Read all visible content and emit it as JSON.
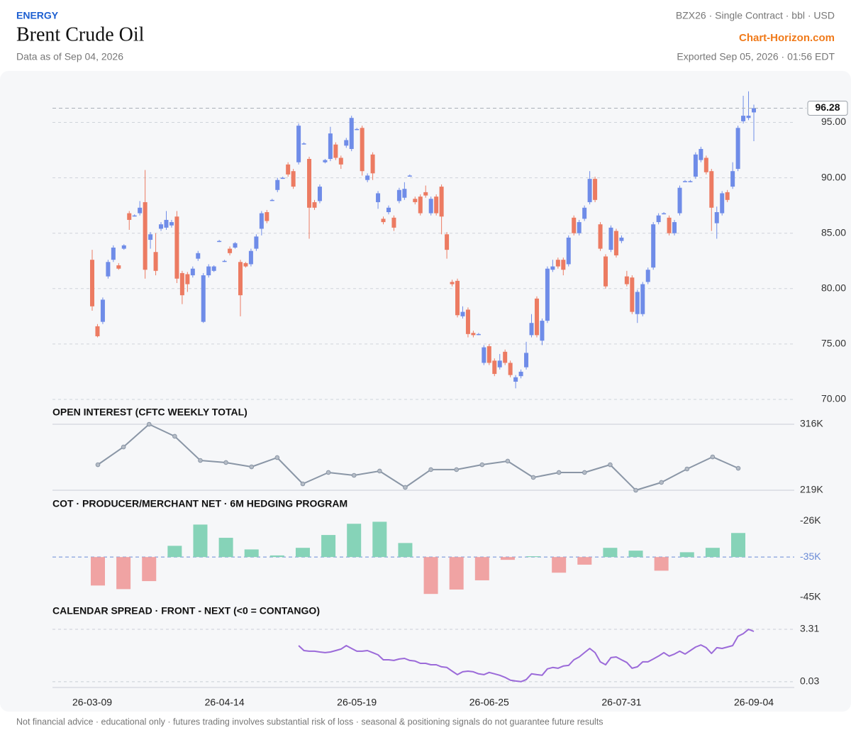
{
  "header": {
    "category": "ENERGY",
    "title": "Brent Crude Oil",
    "as_of": "Data as of Sep 04, 2026",
    "contract": "BZX26 · Single Contract · bbl · USD",
    "source": "Chart-Horizon.com",
    "exported": "Exported Sep 05, 2026 · 01:56 EDT"
  },
  "chart_data": [
    {
      "type": "candlestick",
      "up_color": "#6f8ce8",
      "down_color": "#ec7b62",
      "grid": true,
      "categories": [
        "26-03-09",
        null,
        null,
        null,
        null,
        null,
        null,
        null,
        null,
        null,
        null,
        null,
        null,
        null,
        null,
        null,
        null,
        null,
        null,
        null,
        null,
        null,
        null,
        null,
        null,
        "26-04-14",
        null,
        null,
        null,
        null,
        null,
        null,
        null,
        null,
        null,
        null,
        null,
        null,
        null,
        null,
        null,
        null,
        null,
        null,
        null,
        null,
        null,
        null,
        null,
        null,
        "26-05-19",
        null,
        null,
        null,
        null,
        null,
        null,
        null,
        null,
        null,
        null,
        null,
        null,
        null,
        null,
        null,
        null,
        null,
        null,
        null,
        null,
        null,
        null,
        null,
        null,
        "26-06-25",
        null,
        null,
        null,
        null,
        null,
        null,
        null,
        null,
        null,
        null,
        null,
        null,
        null,
        null,
        null,
        null,
        null,
        null,
        null,
        null,
        null,
        null,
        null,
        null,
        "26-07-31",
        null,
        null,
        null,
        null,
        null,
        null,
        null,
        null,
        null,
        null,
        null,
        null,
        null,
        null,
        null,
        null,
        null,
        null,
        null,
        null,
        null,
        null,
        null,
        null,
        "26-09-04"
      ],
      "open": [
        82.6,
        76.6,
        77.0,
        81.1,
        82.6,
        82.1,
        83.6,
        86.8,
        86.6,
        86.8,
        87.8,
        84.4,
        83.3,
        85.4,
        85.5,
        85.7,
        86.5,
        81.4,
        81.3,
        81.2,
        82.7,
        77.0,
        81.2,
        81.6,
        84.3,
        82.5,
        83.6,
        83.7,
        82.4,
        82.3,
        82.2,
        83.6,
        85.4,
        86.9,
        88.0,
        88.9,
        90.0,
        91.2,
        90.6,
        91.4,
        93.1,
        91.7,
        87.8,
        87.9,
        91.4,
        91.7,
        93.0,
        91.8,
        92.9,
        92.6,
        94.4,
        94.5,
        89.8,
        92.1,
        87.8,
        86.3,
        86.9,
        86.4,
        87.9,
        88.2,
        90.2,
        88.1,
        88.3,
        88.7,
        86.8,
        88.3,
        89.2,
        84.9,
        80.6,
        80.7,
        77.5,
        78.1,
        76.0,
        75.9,
        73.3,
        74.8,
        73.5,
        72.9,
        74.3,
        73.3,
        71.6,
        72.1,
        72.9,
        75.8,
        79.1,
        75.3,
        77.1,
        81.7,
        82.6,
        82.6,
        82.2,
        86.4,
        85.0,
        86.3,
        87.8,
        89.9,
        85.8,
        82.9,
        83.5,
        85.2,
        84.3,
        81.1,
        81.0,
        77.7,
        77.7,
        80.6,
        81.9,
        86.0,
        86.8,
        86.4,
        85.0,
        86.8,
        89.7,
        89.7,
        90.1,
        91.6,
        91.8,
        90.6,
        85.9,
        86.8,
        88.7,
        89.2,
        90.8,
        95.1,
        95.4,
        95.9
      ],
      "high": [
        83.5,
        76.8,
        79.2,
        82.6,
        83.9,
        82.3,
        84.0,
        87.0,
        86.7,
        87.9,
        90.7,
        85.1,
        85.0,
        86.0,
        87.0,
        86.2,
        87.0,
        81.6,
        81.5,
        82.0,
        83.4,
        81.4,
        82.2,
        82.1,
        84.4,
        82.6,
        83.8,
        84.2,
        82.6,
        82.4,
        83.6,
        84.9,
        87.0,
        87.1,
        88.1,
        90.0,
        90.1,
        91.4,
        90.8,
        94.9,
        93.2,
        91.9,
        88.0,
        89.4,
        91.7,
        94.6,
        93.2,
        92.0,
        93.6,
        95.6,
        94.5,
        94.7,
        90.4,
        92.3,
        88.8,
        86.5,
        87.5,
        86.6,
        89.1,
        89.6,
        90.3,
        88.3,
        88.5,
        89.3,
        88.3,
        88.5,
        89.4,
        85.1,
        80.8,
        80.9,
        78.4,
        78.3,
        76.2,
        76.0,
        74.9,
        75.0,
        73.7,
        74.1,
        74.5,
        73.5,
        72.2,
        72.7,
        75.2,
        77.7,
        79.3,
        77.3,
        82.0,
        82.6,
        82.8,
        82.8,
        84.8,
        86.6,
        86.2,
        87.5,
        90.6,
        90.1,
        86.0,
        83.1,
        85.7,
        85.4,
        84.8,
        81.6,
        81.2,
        79.9,
        80.6,
        81.9,
        86.0,
        86.8,
        86.9,
        86.6,
        86.2,
        89.3,
        89.8,
        89.8,
        92.3,
        92.8,
        92.0,
        90.8,
        87.4,
        88.8,
        88.9,
        91.4,
        94.7,
        97.4,
        97.8,
        96.6
      ],
      "low": [
        78.0,
        75.6,
        76.8,
        80.9,
        82.4,
        81.7,
        83.5,
        85.3,
        86.5,
        86.6,
        80.9,
        83.6,
        81.2,
        85.2,
        85.3,
        85.5,
        80.5,
        78.6,
        79.7,
        81.0,
        82.5,
        76.9,
        81.0,
        81.5,
        84.2,
        82.4,
        83.0,
        83.6,
        77.5,
        81.9,
        82.0,
        83.4,
        84.8,
        85.9,
        87.9,
        88.7,
        89.9,
        90.1,
        89.0,
        91.2,
        93.0,
        84.5,
        87.1,
        87.7,
        91.3,
        91.5,
        91.6,
        90.8,
        92.7,
        92.4,
        94.3,
        90.2,
        89.6,
        89.8,
        87.2,
        85.8,
        86.7,
        85.2,
        87.7,
        88.0,
        90.1,
        87.6,
        86.6,
        88.2,
        86.6,
        86.6,
        84.9,
        82.7,
        80.2,
        77.4,
        77.3,
        75.6,
        75.6,
        75.8,
        73.1,
        73.1,
        72.1,
        72.7,
        73.1,
        72.0,
        71.0,
        71.9,
        72.7,
        75.6,
        75.6,
        74.9,
        76.9,
        81.5,
        81.8,
        81.2,
        82.0,
        84.8,
        84.8,
        86.1,
        87.6,
        87.8,
        83.4,
        80.0,
        83.3,
        82.8,
        84.1,
        80.2,
        77.7,
        76.9,
        77.5,
        80.4,
        81.7,
        85.8,
        86.7,
        84.8,
        84.8,
        86.6,
        89.6,
        89.6,
        89.9,
        91.4,
        90.3,
        85.2,
        84.5,
        86.6,
        87.8,
        89.0,
        90.6,
        94.9,
        95.2,
        93.3
      ],
      "close": [
        78.4,
        75.7,
        79.0,
        82.4,
        83.7,
        81.8,
        83.9,
        86.2,
        86.6,
        87.3,
        81.7,
        84.9,
        81.6,
        85.8,
        86.2,
        86.0,
        80.9,
        79.4,
        80.4,
        81.8,
        83.2,
        81.2,
        82.0,
        82.0,
        84.3,
        82.5,
        83.2,
        84.1,
        79.4,
        82.0,
        83.4,
        84.7,
        86.8,
        86.1,
        88.0,
        89.8,
        90.0,
        90.3,
        89.2,
        94.7,
        93.1,
        87.3,
        87.3,
        89.2,
        91.6,
        94.0,
        91.8,
        91.2,
        93.4,
        95.4,
        94.4,
        90.6,
        90.2,
        90.4,
        88.6,
        86.0,
        87.3,
        85.5,
        88.9,
        89.0,
        90.2,
        87.8,
        86.8,
        88.4,
        88.1,
        86.8,
        86.5,
        83.5,
        80.4,
        77.6,
        77.9,
        75.9,
        75.8,
        75.9,
        74.7,
        73.3,
        72.3,
        73.5,
        73.3,
        72.2,
        72.0,
        72.5,
        74.2,
        76.9,
        75.8,
        77.1,
        81.8,
        82.0,
        82.0,
        81.7,
        84.6,
        85.0,
        86.0,
        87.3,
        89.9,
        88.0,
        83.6,
        80.2,
        85.5,
        83.0,
        84.6,
        80.4,
        77.9,
        79.7,
        80.4,
        81.7,
        85.8,
        86.6,
        86.8,
        85.0,
        86.0,
        89.1,
        89.7,
        89.7,
        92.1,
        92.6,
        90.5,
        87.3,
        86.9,
        88.6,
        88.0,
        90.6,
        94.5,
        95.6,
        95.6,
        96.28
      ],
      "ylim": [
        70,
        99
      ],
      "yticks": [
        {
          "value": 70,
          "label": "70.00"
        },
        {
          "value": 75,
          "label": "75.00"
        },
        {
          "value": 80,
          "label": "80.00"
        },
        {
          "value": 85,
          "label": "85.00"
        },
        {
          "value": 90,
          "label": "90.00"
        },
        {
          "value": 95,
          "label": "95.00"
        }
      ]
    },
    {
      "type": "line",
      "title": "OPEN INTEREST (CFTC WEEKLY TOTAL)",
      "color": "#8a96a6",
      "values": [
        256.5,
        282.6,
        316,
        298.3,
        262.8,
        259.7,
        253.4,
        267,
        228.4,
        245.1,
        240.9,
        247.2,
        223.2,
        249.3,
        249.3,
        256.5,
        261.8,
        237.8,
        245.1,
        245.1,
        256.5,
        219,
        230.5,
        250.3,
        268,
        251.3
      ],
      "ylim": [
        219,
        316
      ],
      "yticks": [
        {
          "value": 219,
          "label": "219K"
        },
        {
          "value": 316,
          "label": "316K"
        }
      ]
    },
    {
      "type": "bar",
      "title": "COT · PRODUCER/MERCHANT NET · 6M HEDGING PROGRAM",
      "up_color": "#86d3b8",
      "down_color": "#f0a3a3",
      "baseline_color": "#6a8bd6",
      "values": [
        -42.1,
        -43.0,
        -41.0,
        -32.2,
        -26.9,
        -30.2,
        -33.1,
        -34.6,
        -32.7,
        -29.5,
        -26.7,
        -26.2,
        -31.5,
        -44.2,
        -43.1,
        -40.8,
        -35.7,
        -34.8,
        -38.9,
        -36.9,
        -32.7,
        -33.4,
        -38.4,
        -33.8,
        -32.7,
        -29.0
      ],
      "ylim": [
        -47,
        -24
      ],
      "yticks": [
        {
          "value": -45,
          "label": "-45K"
        },
        {
          "value": -35,
          "label": "-35K"
        },
        {
          "value": -26,
          "label": "-26K"
        }
      ]
    },
    {
      "type": "line",
      "title": "CALENDAR SPREAD · FRONT - NEXT (<0 = CONTANGO)",
      "color": "#9b6ad9",
      "values": [
        null,
        null,
        null,
        null,
        null,
        null,
        null,
        null,
        null,
        null,
        null,
        null,
        null,
        null,
        null,
        null,
        null,
        null,
        null,
        null,
        null,
        null,
        null,
        null,
        null,
        null,
        null,
        null,
        null,
        null,
        null,
        null,
        null,
        null,
        null,
        null,
        null,
        null,
        null,
        2.29,
        1.98,
        1.94,
        1.94,
        1.89,
        1.85,
        1.89,
        1.98,
        2.07,
        2.29,
        2.11,
        1.94,
        1.94,
        1.98,
        1.85,
        1.71,
        1.4,
        1.4,
        1.36,
        1.45,
        1.49,
        1.36,
        1.32,
        1.18,
        1.18,
        1.09,
        1.09,
        0.96,
        0.92,
        0.69,
        0.47,
        0.65,
        0.69,
        0.65,
        0.52,
        0.47,
        0.61,
        0.52,
        0.43,
        0.3,
        0.12,
        0.07,
        0.03,
        0.16,
        0.52,
        0.47,
        0.43,
        0.83,
        0.92,
        0.87,
        1.01,
        1.05,
        1.4,
        1.58,
        1.85,
        2.11,
        1.85,
        1.27,
        1.09,
        1.54,
        1.58,
        1.4,
        1.23,
        0.87,
        0.96,
        1.27,
        1.27,
        1.45,
        1.63,
        1.85,
        1.63,
        1.76,
        1.94,
        1.76,
        1.98,
        2.2,
        2.33,
        2.16,
        1.8,
        2.16,
        2.11,
        2.2,
        2.29,
        2.87,
        3.04,
        3.31,
        3.18
      ],
      "ylim": [
        -0.2,
        3.6
      ],
      "yticks": [
        0.03,
        3.31
      ]
    }
  ],
  "footer": "Not financial advice · educational only · futures trading involves substantial risk of loss · seasonal & positioning signals do not guarantee future results"
}
